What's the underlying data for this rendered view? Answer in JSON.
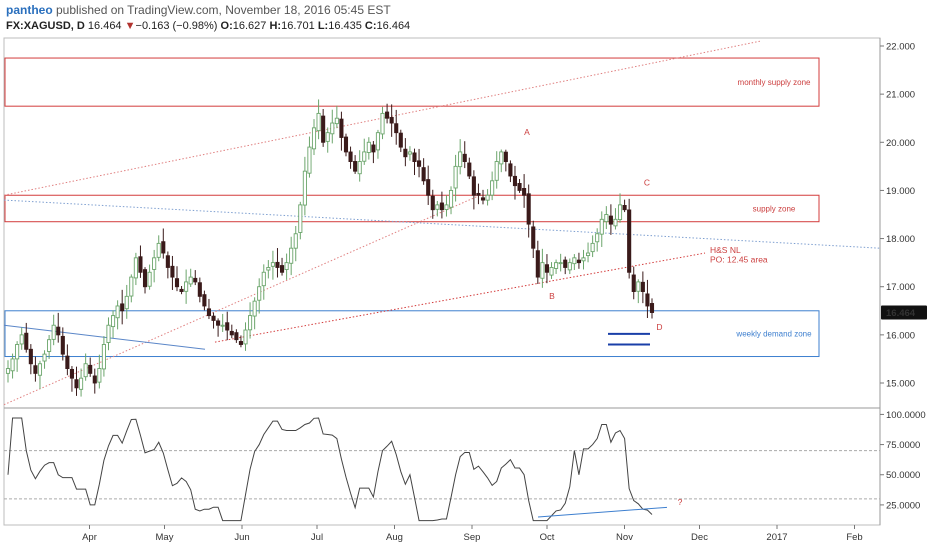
{
  "header": {
    "author": "pantheo",
    "published_text": " published on TradingView.com, November 18, 2016 05:45 EST",
    "symbol": "FX:XAGUSD, D",
    "last": "16.464",
    "change_arrow": "▼",
    "change": "−0.163 (−0.98%)",
    "o_label": "O:",
    "o_value": "16.627",
    "h_label": "H:",
    "h_value": "16.701",
    "l_label": "L:",
    "l_value": "16.435",
    "c_label": "C:",
    "c_value": "16.464"
  },
  "colors": {
    "up": "#6ba56b",
    "down": "#3a1a1a",
    "supply": "#d33b3b",
    "demand": "#3d7fcf",
    "trend_blue": "#8aa6cf",
    "grid": "#d0d0d0",
    "rsi_line": "#444444"
  },
  "chart_data": [
    {
      "type": "candlestick",
      "title": "",
      "xlabel": "",
      "ylabel": "",
      "x_ticks": [
        "Apr",
        "May",
        "Jun",
        "Jul",
        "Aug",
        "Sep",
        "Oct",
        "Nov",
        "Dec",
        "2017",
        "Feb"
      ],
      "y_ticks": [
        "22.000",
        "21.000",
        "20.000",
        "19.000",
        "18.000",
        "17.000",
        "16.000",
        "15.000"
      ],
      "ylim": [
        14.5,
        22.1
      ],
      "current_price_label": "16.464",
      "zones": [
        {
          "label": "monthly supply zone",
          "top": 21.75,
          "bottom": 20.75,
          "kind": "supply"
        },
        {
          "label": "supply zone",
          "top": 18.9,
          "bottom": 18.35,
          "kind": "supply"
        },
        {
          "label": "weekly demand zone",
          "top": 16.5,
          "bottom": 15.55,
          "kind": "demand"
        }
      ],
      "annotations": [
        {
          "text": "A",
          "date": "2016-09-23",
          "price": 20.15
        },
        {
          "text": "B",
          "date": "2016-10-03",
          "price": 16.75
        },
        {
          "text": "C",
          "date": "2016-11-10",
          "price": 19.1
        },
        {
          "text": "D",
          "date": "2016-11-15",
          "price": 16.1
        },
        {
          "text": "H&S NL",
          "date": "2016-11-28",
          "price": 17.7
        },
        {
          "text": "PO: 12.45 area",
          "date": "2016-11-28",
          "price": 17.5
        }
      ],
      "ohlc_closes": [
        15.3,
        15.5,
        15.8,
        16.0,
        15.7,
        15.4,
        15.2,
        15.4,
        15.6,
        15.9,
        16.2,
        16.0,
        15.6,
        15.3,
        15.1,
        14.9,
        15.1,
        15.4,
        15.2,
        15.0,
        15.3,
        15.8,
        16.2,
        16.4,
        16.6,
        16.5,
        16.8,
        17.2,
        17.6,
        17.3,
        17.0,
        17.3,
        17.6,
        17.9,
        17.7,
        17.4,
        17.2,
        17.0,
        16.9,
        17.1,
        17.2,
        17.1,
        16.8,
        16.6,
        16.4,
        16.3,
        16.2,
        16.2,
        16.1,
        16.0,
        15.9,
        15.8,
        16.1,
        16.4,
        16.7,
        17.0,
        17.3,
        17.4,
        17.5,
        17.4,
        17.3,
        17.5,
        17.8,
        18.1,
        18.7,
        19.4,
        19.9,
        20.3,
        20.6,
        20.0,
        20.2,
        20.4,
        20.5,
        20.1,
        19.8,
        19.6,
        19.4,
        19.6,
        19.8,
        20.0,
        19.8,
        20.2,
        20.6,
        20.5,
        20.4,
        20.2,
        19.9,
        19.7,
        19.8,
        19.6,
        19.5,
        19.2,
        18.9,
        18.6,
        18.7,
        18.6,
        18.7,
        19.0,
        19.5,
        19.8,
        19.6,
        19.3,
        18.9,
        18.9,
        18.8,
        18.9,
        19.2,
        19.6,
        19.8,
        19.6,
        19.3,
        19.1,
        19.0,
        18.9,
        18.3,
        17.8,
        17.2,
        17.5,
        17.3,
        17.4,
        17.5,
        17.5,
        17.4,
        17.5,
        17.6,
        17.5,
        17.6,
        17.7,
        17.9,
        18.1,
        18.4,
        18.5,
        18.3,
        18.4,
        18.7,
        18.6,
        17.3,
        16.9,
        17.1,
        16.9,
        16.6,
        16.464
      ],
      "rsi": {
        "y_ticks": [
          "100.0000",
          "75.0000",
          "50.0000",
          "25.0000"
        ],
        "ylim": [
          10,
          102
        ],
        "levels": [
          70,
          30
        ],
        "label": "?"
      }
    }
  ]
}
